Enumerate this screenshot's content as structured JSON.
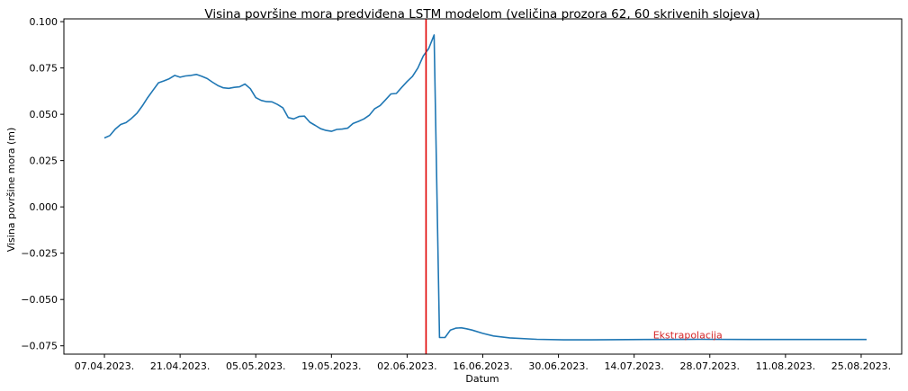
{
  "chart_data": {
    "type": "line",
    "title": "Visina površine mora predviđena LSTM modelom (veličina prozora 62, 60 skrivenih slojeva)",
    "xlabel": "Datum",
    "ylabel": "Visina površine mora (m)",
    "x_ticks": [
      "07.04.2023.",
      "21.04.2023.",
      "05.05.2023.",
      "19.05.2023.",
      "02.06.2023.",
      "16.06.2023.",
      "30.06.2023.",
      "14.07.2023.",
      "28.07.2023.",
      "11.08.2023.",
      "25.08.2023."
    ],
    "x_tick_days": [
      0,
      14,
      28,
      42,
      56,
      70,
      84,
      98,
      112,
      126,
      140
    ],
    "y_ticks": [
      "0.100",
      "0.075",
      "0.050",
      "0.025",
      "0.000",
      "−0.025",
      "−0.050",
      "−0.075"
    ],
    "y_tick_values": [
      0.1,
      0.075,
      0.05,
      0.025,
      0.0,
      -0.025,
      -0.05,
      -0.075
    ],
    "xlim_days": [
      -7.5,
      147.5
    ],
    "ylim": [
      -0.0795,
      0.1015
    ],
    "series": [
      {
        "color": "#1f77b4",
        "points": [
          [
            0,
            0.0372
          ],
          [
            1,
            0.0385
          ],
          [
            2,
            0.042
          ],
          [
            3,
            0.0445
          ],
          [
            4,
            0.0455
          ],
          [
            5,
            0.0478
          ],
          [
            6,
            0.0505
          ],
          [
            7,
            0.0545
          ],
          [
            8,
            0.059
          ],
          [
            9,
            0.063
          ],
          [
            10,
            0.067
          ],
          [
            11,
            0.068
          ],
          [
            12,
            0.0692
          ],
          [
            13,
            0.071
          ],
          [
            14,
            0.07
          ],
          [
            15,
            0.0707
          ],
          [
            16,
            0.071
          ],
          [
            17,
            0.0715
          ],
          [
            18,
            0.0705
          ],
          [
            19,
            0.0693
          ],
          [
            20,
            0.0673
          ],
          [
            21,
            0.0655
          ],
          [
            22,
            0.0643
          ],
          [
            23,
            0.064
          ],
          [
            24,
            0.0645
          ],
          [
            25,
            0.0648
          ],
          [
            26,
            0.0663
          ],
          [
            27,
            0.0638
          ],
          [
            28,
            0.059
          ],
          [
            29,
            0.0575
          ],
          [
            30,
            0.0568
          ],
          [
            31,
            0.0567
          ],
          [
            32,
            0.0553
          ],
          [
            33,
            0.0535
          ],
          [
            34,
            0.0482
          ],
          [
            35,
            0.0475
          ],
          [
            36,
            0.0488
          ],
          [
            37,
            0.049
          ],
          [
            38,
            0.0457
          ],
          [
            39,
            0.044
          ],
          [
            40,
            0.0422
          ],
          [
            41,
            0.0413
          ],
          [
            42,
            0.0408
          ],
          [
            43,
            0.0418
          ],
          [
            44,
            0.042
          ],
          [
            45,
            0.0425
          ],
          [
            46,
            0.045
          ],
          [
            47,
            0.0462
          ],
          [
            48,
            0.0475
          ],
          [
            49,
            0.0495
          ],
          [
            50,
            0.053
          ],
          [
            51,
            0.0547
          ],
          [
            52,
            0.0578
          ],
          [
            53,
            0.061
          ],
          [
            54,
            0.0612
          ],
          [
            55,
            0.0645
          ],
          [
            56,
            0.0677
          ],
          [
            57,
            0.0705
          ],
          [
            58,
            0.075
          ],
          [
            59,
            0.0815
          ],
          [
            60,
            0.0855
          ],
          [
            61,
            0.0928
          ],
          [
            62,
            -0.0705
          ],
          [
            63,
            -0.0705
          ],
          [
            64,
            -0.0665
          ],
          [
            65,
            -0.0655
          ],
          [
            66,
            -0.0653
          ],
          [
            67,
            -0.0658
          ],
          [
            68,
            -0.0665
          ],
          [
            70,
            -0.0683
          ],
          [
            72,
            -0.0697
          ],
          [
            75,
            -0.0707
          ],
          [
            80,
            -0.0715
          ],
          [
            85,
            -0.0718
          ],
          [
            90,
            -0.0718
          ],
          [
            100,
            -0.0716
          ],
          [
            110,
            -0.0715
          ],
          [
            120,
            -0.0716
          ],
          [
            130,
            -0.0716
          ],
          [
            140,
            -0.0716
          ],
          [
            141,
            -0.0716
          ]
        ]
      }
    ],
    "vline": {
      "x_day": 59.5,
      "color": "#e00000"
    },
    "annotation": {
      "text": "Ekstrapolacija",
      "x_day": 101.5,
      "y": -0.0705,
      "color": "#d62728"
    }
  }
}
